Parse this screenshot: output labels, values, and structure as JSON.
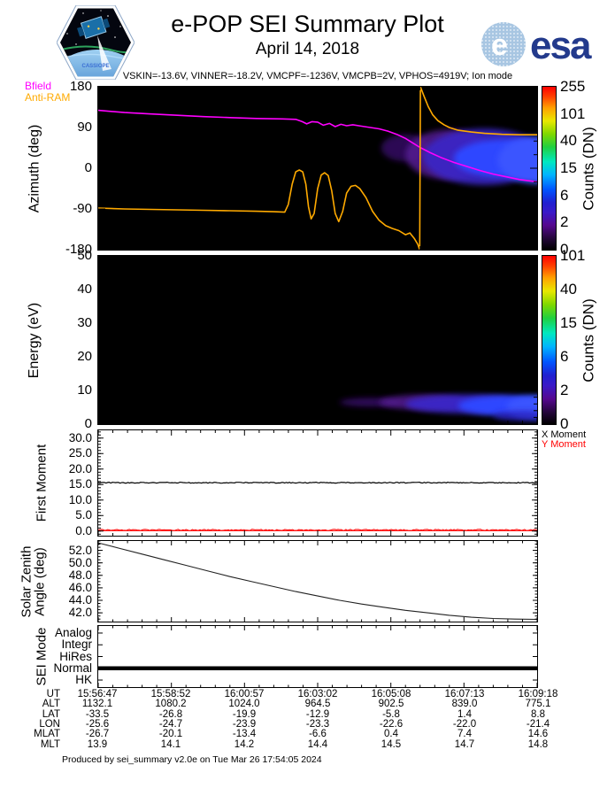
{
  "header": {
    "title": "e-POP SEI Summary Plot",
    "date": "April 14, 2018",
    "settings_line": "VSKIN=-13.6V, VINNER=-18.2V, VMCPF=-1236V, VMCPB=2V, VPHOS=4919V; Ion mode",
    "esa_text": "esa",
    "patch_text": "CASSIOPE"
  },
  "colors": {
    "bfield": "#ff00ff",
    "anti_ram": "#ffaa00",
    "x_moment": "#000000",
    "y_moment": "#ff0000",
    "esa_blue": "#233a8c",
    "spectrogram_core": "#2f46ff",
    "spectrogram_fringe": "#551a92"
  },
  "chart_data": [
    {
      "name": "azimuth",
      "type": "heatmap",
      "ylabel": "Azimuth (deg)",
      "ylim": [
        -180,
        180
      ],
      "yticks": [
        {
          "v": 180,
          "t": "180"
        },
        {
          "v": 90,
          "t": "90"
        },
        {
          "v": 0,
          "t": "0"
        },
        {
          "v": -90,
          "t": "-90"
        },
        {
          "v": -180,
          "t": "-180"
        }
      ],
      "yminor": 30,
      "tick_font": 15,
      "x_window": [
        "15:56:47",
        "16:09:18"
      ],
      "colorbar": {
        "label": "Counts (DN)",
        "ticks": [
          "0",
          "2",
          "6",
          "15",
          "40",
          "101",
          "255"
        ]
      },
      "legend": [
        {
          "label": "Bfield",
          "color": "#ff00ff"
        },
        {
          "label": "Anti-RAM",
          "color": "#ffaa00"
        }
      ],
      "regions": [
        {
          "x": 0.7,
          "y": 45,
          "rx": 0.055,
          "ry": 30,
          "color": "#3a1070",
          "opacity": 0.75
        },
        {
          "x": 0.8,
          "y": 30,
          "rx": 0.1,
          "ry": 55,
          "color": "#551a92",
          "opacity": 0.85
        },
        {
          "x": 0.88,
          "y": 25,
          "rx": 0.14,
          "ry": 62,
          "color": "#3a28c8",
          "opacity": 0.9
        },
        {
          "x": 0.93,
          "y": 22,
          "rx": 0.12,
          "ry": 42,
          "color": "#2f46ff",
          "opacity": 1
        },
        {
          "x": 1.0,
          "y": 18,
          "rx": 0.09,
          "ry": 52,
          "color": "#3b55ff",
          "opacity": 1
        }
      ],
      "series": [
        {
          "name": "Bfield",
          "color": "#ff00ff",
          "width": 1.6,
          "points": [
            [
              0,
              128
            ],
            [
              0.06,
              123
            ],
            [
              0.12,
              120
            ],
            [
              0.18,
              117
            ],
            [
              0.24,
              114
            ],
            [
              0.3,
              112
            ],
            [
              0.36,
              110
            ],
            [
              0.42,
              109
            ],
            [
              0.45,
              108
            ],
            [
              0.465,
              103
            ],
            [
              0.475,
              98
            ],
            [
              0.487,
              103
            ],
            [
              0.5,
              102
            ],
            [
              0.513,
              95
            ],
            [
              0.527,
              99
            ],
            [
              0.54,
              92
            ],
            [
              0.553,
              97
            ],
            [
              0.566,
              94
            ],
            [
              0.58,
              96
            ],
            [
              0.6,
              93
            ],
            [
              0.62,
              90
            ],
            [
              0.64,
              87
            ],
            [
              0.66,
              82
            ],
            [
              0.68,
              75
            ],
            [
              0.7,
              66
            ],
            [
              0.715,
              57
            ],
            [
              0.733,
              46
            ],
            [
              0.755,
              35
            ],
            [
              0.78,
              24
            ],
            [
              0.81,
              13
            ],
            [
              0.84,
              4
            ],
            [
              0.87,
              -5
            ],
            [
              0.9,
              -13
            ],
            [
              0.93,
              -19
            ],
            [
              0.96,
              -25
            ],
            [
              1.0,
              -30
            ]
          ]
        },
        {
          "name": "Anti-RAM",
          "color": "#ffaa00",
          "width": 1.6,
          "points": [
            [
              0,
              -88
            ],
            [
              0.06,
              -90
            ],
            [
              0.12,
              -91
            ],
            [
              0.18,
              -92
            ],
            [
              0.24,
              -93
            ],
            [
              0.3,
              -94
            ],
            [
              0.36,
              -95
            ],
            [
              0.4,
              -96
            ],
            [
              0.425,
              -97
            ],
            [
              0.433,
              -80
            ],
            [
              0.442,
              -35
            ],
            [
              0.45,
              -8
            ],
            [
              0.458,
              -4
            ],
            [
              0.466,
              -8
            ],
            [
              0.473,
              -35
            ],
            [
              0.479,
              -85
            ],
            [
              0.485,
              -112
            ],
            [
              0.492,
              -100
            ],
            [
              0.5,
              -45
            ],
            [
              0.508,
              -15
            ],
            [
              0.516,
              -10
            ],
            [
              0.524,
              -16
            ],
            [
              0.532,
              -50
            ],
            [
              0.54,
              -100
            ],
            [
              0.548,
              -118
            ],
            [
              0.557,
              -95
            ],
            [
              0.566,
              -55
            ],
            [
              0.576,
              -40
            ],
            [
              0.586,
              -38
            ],
            [
              0.596,
              -45
            ],
            [
              0.61,
              -65
            ],
            [
              0.625,
              -95
            ],
            [
              0.64,
              -115
            ],
            [
              0.655,
              -127
            ],
            [
              0.67,
              -133
            ],
            [
              0.685,
              -138
            ],
            [
              0.7,
              -147
            ],
            [
              0.71,
              -143
            ],
            [
              0.72,
              -155
            ],
            [
              0.728,
              -168
            ],
            [
              0.7325,
              -180
            ],
            [
              0.734,
              180
            ],
            [
              0.742,
              160
            ],
            [
              0.752,
              136
            ],
            [
              0.762,
              118
            ],
            [
              0.774,
              105
            ],
            [
              0.788,
              96
            ],
            [
              0.8,
              90
            ],
            [
              0.82,
              84
            ],
            [
              0.85,
              80
            ],
            [
              0.88,
              77
            ],
            [
              0.92,
              75
            ],
            [
              0.96,
              74
            ],
            [
              1.0,
              74
            ]
          ]
        }
      ]
    },
    {
      "name": "energy",
      "type": "heatmap",
      "ylabel": "Energy (eV)",
      "ylim": [
        0,
        50
      ],
      "yticks": [
        {
          "v": 50,
          "t": "50"
        },
        {
          "v": 40,
          "t": "40"
        },
        {
          "v": 30,
          "t": "30"
        },
        {
          "v": 20,
          "t": "20"
        },
        {
          "v": 10,
          "t": "10"
        },
        {
          "v": 0,
          "t": "0"
        }
      ],
      "yminor": 2,
      "tick_font": 15,
      "colorbar": {
        "label": "Counts (DN)",
        "ticks": [
          "0",
          "2",
          "6",
          "15",
          "40",
          "101"
        ]
      },
      "regions": [
        {
          "x": 0.62,
          "y": 6.5,
          "rx": 0.07,
          "ry": 1.3,
          "color": "#3a1070",
          "opacity": 0.8
        },
        {
          "x": 0.74,
          "y": 6.5,
          "rx": 0.1,
          "ry": 2.2,
          "color": "#551a92",
          "opacity": 0.85
        },
        {
          "x": 0.84,
          "y": 6,
          "rx": 0.14,
          "ry": 2.8,
          "color": "#3a28c8",
          "opacity": 0.95
        },
        {
          "x": 0.94,
          "y": 5.5,
          "rx": 0.12,
          "ry": 3.0,
          "color": "#2f46ff",
          "opacity": 1
        },
        {
          "x": 1.0,
          "y": 5,
          "rx": 0.07,
          "ry": 3.4,
          "color": "#3b55ff",
          "opacity": 1
        },
        {
          "x": 0.97,
          "y": 2.5,
          "rx": 0.07,
          "ry": 1.5,
          "color": "#2a20c0",
          "opacity": 0.8
        }
      ],
      "series": []
    },
    {
      "name": "first_moment",
      "type": "line",
      "ylabel": "First Moment",
      "ylim": [
        -1.5,
        32.5
      ],
      "yticks": [
        {
          "v": 30,
          "t": "30.0"
        },
        {
          "v": 25,
          "t": "25.0"
        },
        {
          "v": 20,
          "t": "20.0"
        },
        {
          "v": 15,
          "t": "15.0"
        },
        {
          "v": 10,
          "t": "10.0"
        },
        {
          "v": 5,
          "t": "5.0"
        },
        {
          "v": 0,
          "t": "0.0"
        }
      ],
      "yminor": 1,
      "tick_font": 13.5,
      "legend": [
        {
          "label": "X Moment",
          "color": "#000000"
        },
        {
          "label": "Y Moment",
          "color": "#ff0000"
        }
      ],
      "series": [
        {
          "name": "X Moment",
          "color": "#000000",
          "width": 1.2,
          "value": 15.6,
          "noise": 0.15
        },
        {
          "name": "Y Moment",
          "color": "#ff0000",
          "width": 1.0,
          "value": 0.35,
          "noise": 0.2
        },
        {
          "name": "Y Moment baseline",
          "color": "#ff0000",
          "width": 1.0,
          "points": [
            [
              0,
              0.1
            ],
            [
              1,
              0.1
            ]
          ]
        }
      ]
    },
    {
      "name": "solar_zenith",
      "type": "line",
      "ylabel": "Solar Zenith\nAngle (deg)",
      "ylim": [
        40.6,
        53.5
      ],
      "yticks": [
        {
          "v": 52,
          "t": "52.0"
        },
        {
          "v": 50,
          "t": "50.0"
        },
        {
          "v": 48,
          "t": "48.0"
        },
        {
          "v": 46,
          "t": "46.0"
        },
        {
          "v": 44,
          "t": "44.0"
        },
        {
          "v": 42,
          "t": "42.0"
        }
      ],
      "yminor": 0.5,
      "tick_font": 13.5,
      "series": [
        {
          "name": "Solar Zenith Angle",
          "color": "#222222",
          "width": 1.1,
          "points": [
            [
              0,
              53.2
            ],
            [
              0.05,
              52.3
            ],
            [
              0.1,
              51.4
            ],
            [
              0.15,
              50.5
            ],
            [
              0.2,
              49.6
            ],
            [
              0.25,
              48.7
            ],
            [
              0.3,
              47.8
            ],
            [
              0.35,
              47.0
            ],
            [
              0.4,
              46.2
            ],
            [
              0.45,
              45.4
            ],
            [
              0.5,
              44.7
            ],
            [
              0.55,
              44.0
            ],
            [
              0.6,
              43.4
            ],
            [
              0.65,
              42.9
            ],
            [
              0.7,
              42.4
            ],
            [
              0.75,
              42.0
            ],
            [
              0.8,
              41.6
            ],
            [
              0.85,
              41.3
            ],
            [
              0.9,
              41.1
            ],
            [
              0.95,
              41.0
            ],
            [
              1.0,
              40.95
            ]
          ]
        }
      ]
    },
    {
      "name": "sei_mode",
      "type": "line",
      "ylabel": "SEI Mode",
      "ylim": [
        -0.6,
        4.6
      ],
      "yticks": [
        {
          "v": 4,
          "t": "Analog"
        },
        {
          "v": 3,
          "t": "Integr"
        },
        {
          "v": 2,
          "t": "HiRes"
        },
        {
          "v": 1,
          "t": "Normal"
        },
        {
          "v": 0,
          "t": "HK"
        }
      ],
      "tick_font": 13.5,
      "series": [
        {
          "name": "SEI Mode",
          "color": "#000000",
          "width": 4.5,
          "points": [
            [
              0,
              1
            ],
            [
              1,
              1
            ]
          ]
        }
      ]
    }
  ],
  "bottom_axis": {
    "rows": [
      {
        "label": "UT",
        "values": [
          "15:56:47",
          "15:58:52",
          "16:00:57",
          "16:03:02",
          "16:05:08",
          "16:07:13",
          "16:09:18"
        ]
      },
      {
        "label": "ALT",
        "values": [
          "1132.1",
          "1080.2",
          "1024.0",
          "964.5",
          "902.5",
          "839.0",
          "775.1"
        ]
      },
      {
        "label": "LAT",
        "values": [
          "-33.5",
          "-26.8",
          "-19.9",
          "-12.9",
          "-5.8",
          "1.4",
          "8.8"
        ]
      },
      {
        "label": "LON",
        "values": [
          "-25.6",
          "-24.7",
          "-23.9",
          "-23.3",
          "-22.6",
          "-22.0",
          "-21.4"
        ]
      },
      {
        "label": "MLAT",
        "values": [
          "-26.7",
          "-20.1",
          "-13.4",
          "-6.6",
          "0.4",
          "7.4",
          "14.6"
        ]
      },
      {
        "label": "MLT",
        "values": [
          "13.9",
          "14.1",
          "14.2",
          "14.4",
          "14.5",
          "14.7",
          "14.8"
        ]
      }
    ]
  },
  "footer": "Produced by sei_summary v2.0e on Tue Mar 26 17:54:05 2024"
}
